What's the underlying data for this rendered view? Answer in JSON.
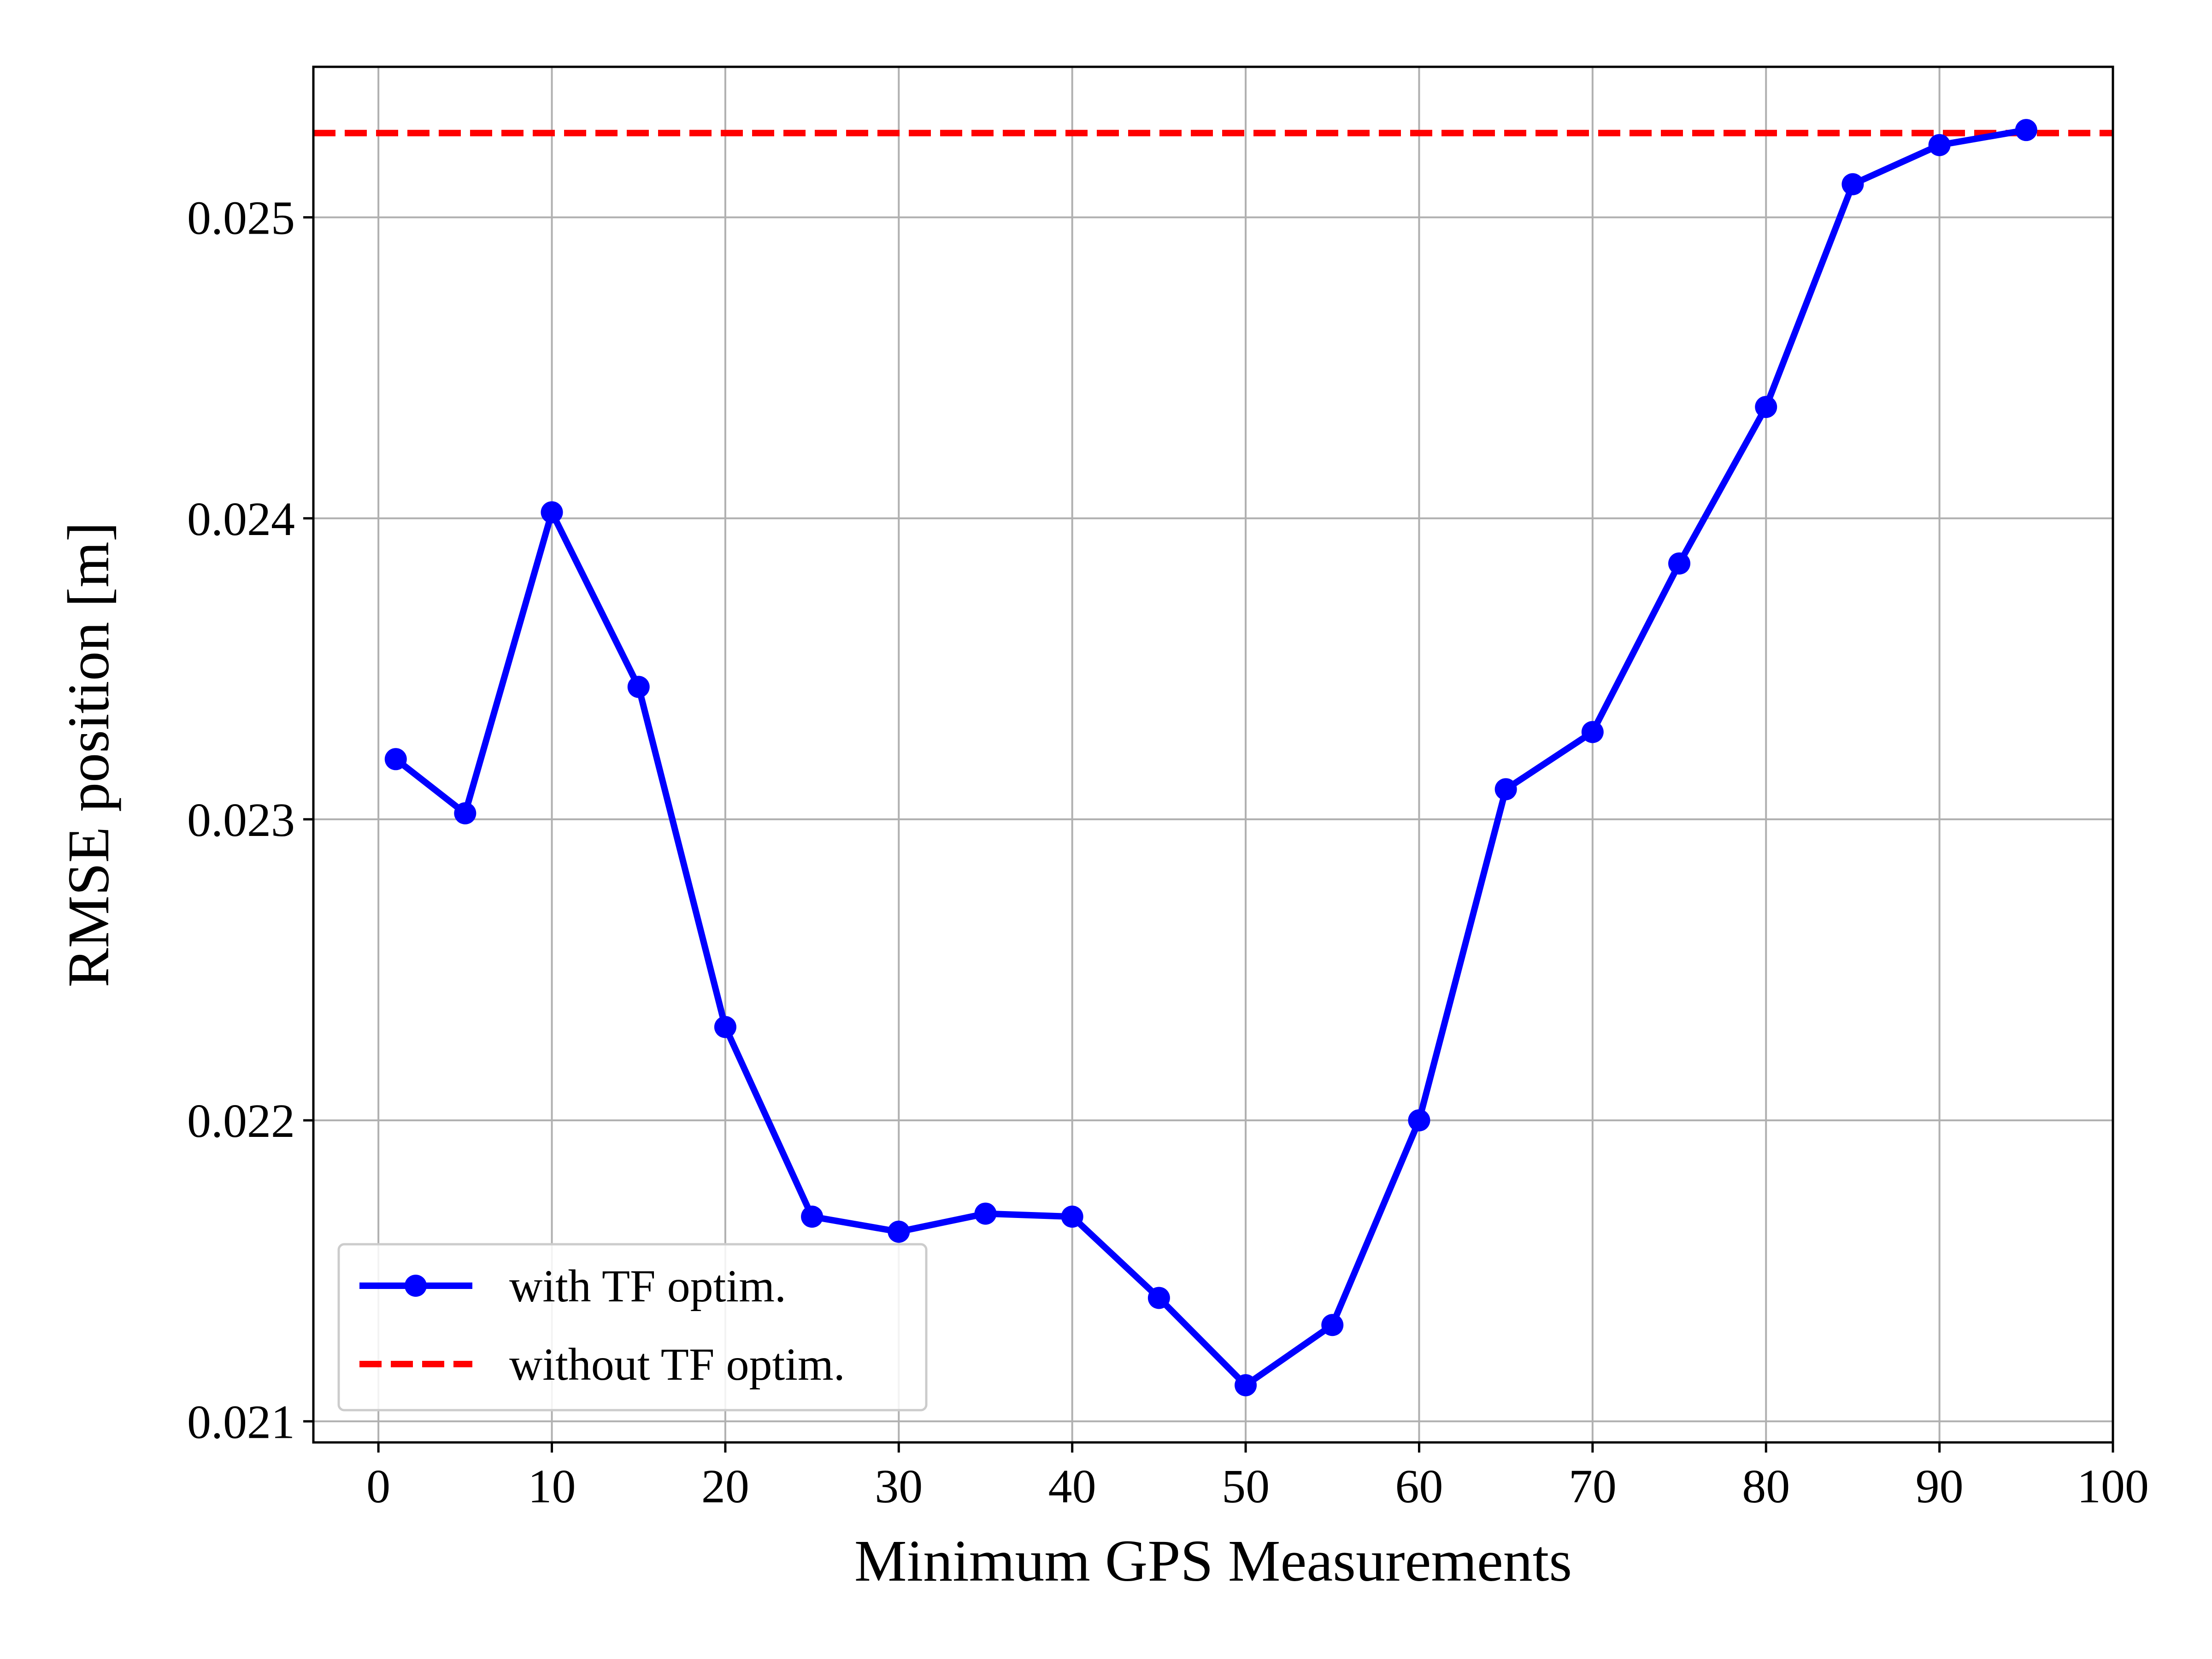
{
  "chart_data": {
    "type": "line",
    "title": "",
    "xlabel": "Minimum GPS Measurements",
    "ylabel": "RMSE position [m]",
    "xlim": [
      -3.75,
      100
    ],
    "ylim": [
      0.02093,
      0.0255
    ],
    "xticks": [
      0,
      10,
      20,
      30,
      40,
      50,
      60,
      70,
      80,
      90,
      100
    ],
    "xtick_labels": [
      "0",
      "10",
      "20",
      "30",
      "40",
      "50",
      "60",
      "70",
      "80",
      "90",
      "100"
    ],
    "yticks": [
      0.021,
      0.022,
      0.023,
      0.024,
      0.025
    ],
    "ytick_labels": [
      "0.021",
      "0.022",
      "0.023",
      "0.024",
      "0.025"
    ],
    "grid": true,
    "legend_position": "lower-left",
    "series": [
      {
        "name": "with TF optim.",
        "color": "#0000ff",
        "style": "solid",
        "marker": "circle",
        "x": [
          1,
          5,
          10,
          15,
          20,
          25,
          30,
          35,
          40,
          45,
          50,
          55,
          60,
          65,
          70,
          75,
          80,
          85,
          90,
          95
        ],
        "y": [
          0.0232,
          0.02302,
          0.02402,
          0.02344,
          0.02231,
          0.02168,
          0.02163,
          0.02169,
          0.02168,
          0.02141,
          0.02112,
          0.02132,
          0.022,
          0.0231,
          0.02329,
          0.02385,
          0.02437,
          0.02511,
          0.02524,
          0.02529
        ]
      },
      {
        "name": "without TF optim.",
        "color": "#ff0000",
        "style": "dashed",
        "y_constant": 0.02528
      }
    ]
  }
}
